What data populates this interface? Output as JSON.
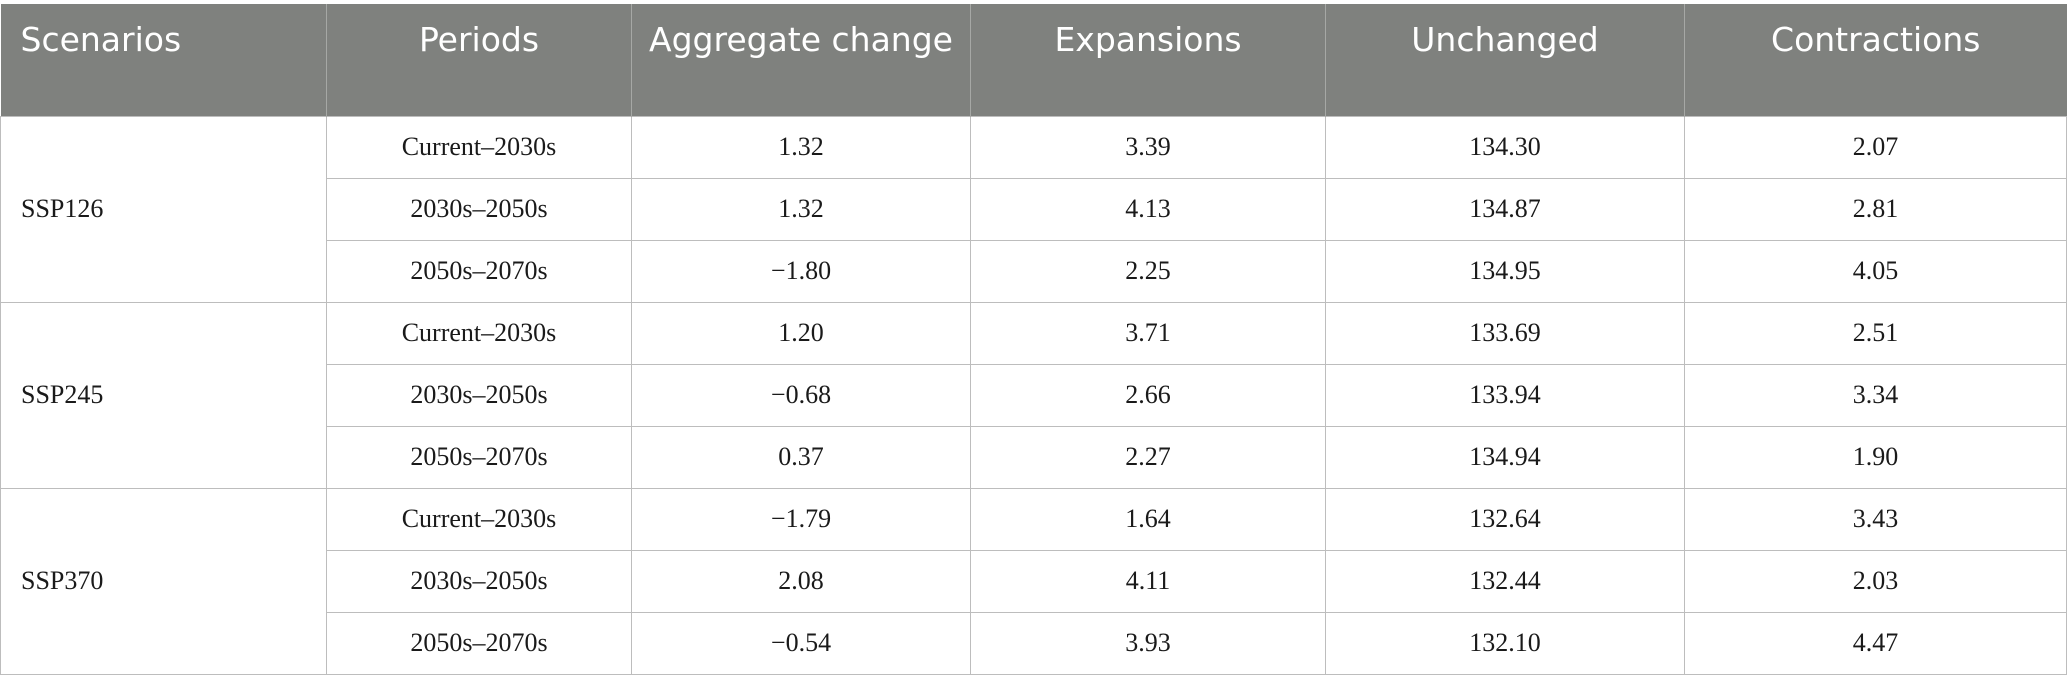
{
  "table": {
    "headers": [
      "Scenarios",
      "Periods",
      "Aggregate change",
      "Expansions",
      "Unchanged",
      "Contractions"
    ],
    "groups": [
      {
        "scenario": "SSP126",
        "rows": [
          {
            "period": "Current–2030s",
            "aggregate": "1.32",
            "expansions": "3.39",
            "unchanged": "134.30",
            "contractions": "2.07"
          },
          {
            "period": "2030s–2050s",
            "aggregate": "1.32",
            "expansions": "4.13",
            "unchanged": "134.87",
            "contractions": "2.81"
          },
          {
            "period": "2050s–2070s",
            "aggregate": "−1.80",
            "expansions": "2.25",
            "unchanged": "134.95",
            "contractions": "4.05"
          }
        ]
      },
      {
        "scenario": "SSP245",
        "rows": [
          {
            "period": "Current–2030s",
            "aggregate": "1.20",
            "expansions": "3.71",
            "unchanged": "133.69",
            "contractions": "2.51"
          },
          {
            "period": "2030s–2050s",
            "aggregate": "−0.68",
            "expansions": "2.66",
            "unchanged": "133.94",
            "contractions": "3.34"
          },
          {
            "period": "2050s–2070s",
            "aggregate": "0.37",
            "expansions": "2.27",
            "unchanged": "134.94",
            "contractions": "1.90"
          }
        ]
      },
      {
        "scenario": "SSP370",
        "rows": [
          {
            "period": "Current–2030s",
            "aggregate": "−1.79",
            "expansions": "1.64",
            "unchanged": "132.64",
            "contractions": "3.43"
          },
          {
            "period": "2030s–2050s",
            "aggregate": "2.08",
            "expansions": "4.11",
            "unchanged": "132.44",
            "contractions": "2.03"
          },
          {
            "period": "2050s–2070s",
            "aggregate": "−0.54",
            "expansions": "3.93",
            "unchanged": "132.10",
            "contractions": "4.47"
          }
        ]
      }
    ]
  },
  "colors": {
    "header_bg": "#7f817e",
    "header_text": "#ffffff",
    "grid_line": "#bdbdbd"
  }
}
